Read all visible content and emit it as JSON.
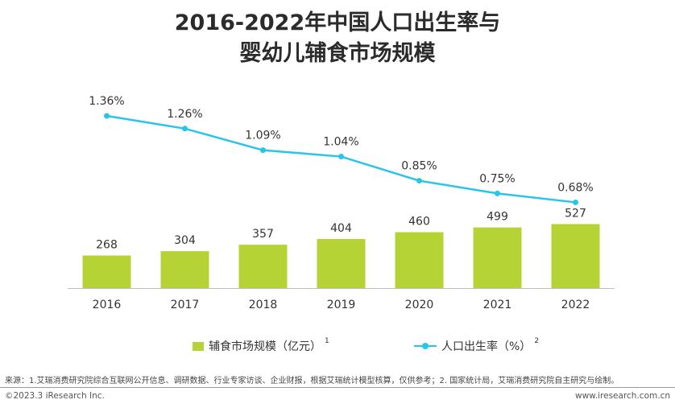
{
  "header": {
    "title_line1": "2016-2022年中国人口出生率与",
    "title_line2": "婴幼儿辅食市场规模"
  },
  "chart_data": {
    "type": "bar+line",
    "categories": [
      "2016",
      "2017",
      "2018",
      "2019",
      "2020",
      "2021",
      "2022"
    ],
    "series": [
      {
        "name": "辅食市场规模（亿元）",
        "type": "bar",
        "values": [
          268,
          304,
          357,
          404,
          460,
          499,
          527
        ],
        "labels": [
          "268",
          "304",
          "357",
          "404",
          "460",
          "499",
          "527"
        ],
        "color": "#b5d334"
      },
      {
        "name": "人口出生率（%）",
        "type": "line",
        "values": [
          1.36,
          1.26,
          1.09,
          1.04,
          0.85,
          0.75,
          0.68
        ],
        "labels": [
          "1.36%",
          "1.26%",
          "1.09%",
          "1.04%",
          "0.85%",
          "0.75%",
          "0.68%"
        ],
        "color": "#29c5e6"
      }
    ],
    "legend": [
      {
        "label": "辅食市场规模（亿元）",
        "note": "1"
      },
      {
        "label": "人口出生率（%）",
        "note": "2"
      }
    ],
    "legend_position": "bottom",
    "grid": false
  },
  "footer": {
    "source": "来源：1.艾瑞消费研究院综合互联网公开信息、调研数据、行业专家访谈、企业财报，根据艾瑞统计模型核算，仅供参考；2. 国家统计局，艾瑞消费研究院自主研究与绘制。",
    "copyright": "©2023.3 iResearch Inc.",
    "website": "www.iresearch.com.cn"
  }
}
